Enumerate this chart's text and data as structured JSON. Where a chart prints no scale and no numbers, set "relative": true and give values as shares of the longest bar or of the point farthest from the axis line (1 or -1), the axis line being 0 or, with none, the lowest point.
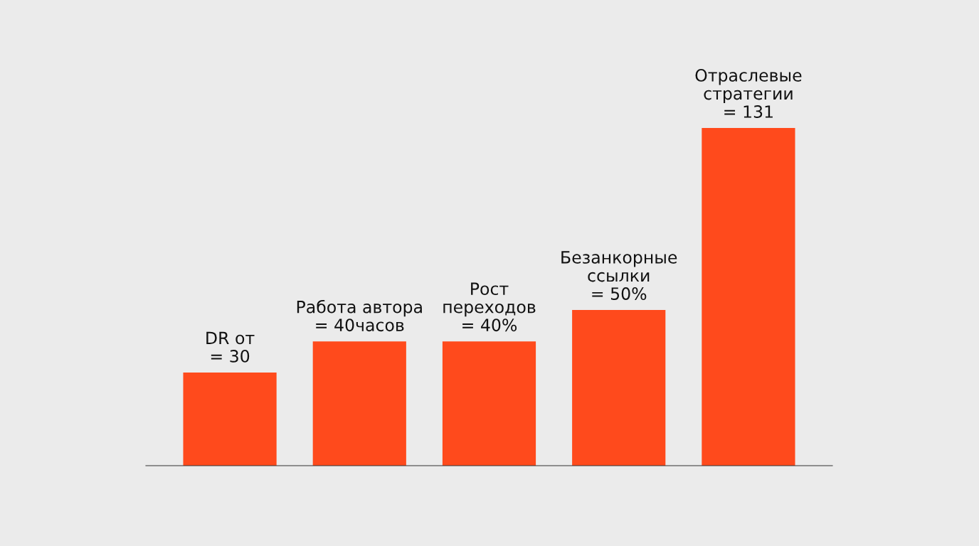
{
  "chart_data": {
    "type": "bar",
    "relative": true,
    "categories": [
      null,
      null,
      null,
      null,
      null
    ],
    "values": [
      0.276,
      0.368,
      0.368,
      0.461,
      1
    ],
    "color": "#ff4a1c",
    "annotations": [
      "DR от\n= 30",
      "Работа автора\n= 40часов",
      "Рост\nпереходов\n= 40%",
      "Безанкорные\nссылки\n= 50%",
      "Отраслевые\nстратегии\n= 131"
    ],
    "grid": false,
    "legend": false
  }
}
